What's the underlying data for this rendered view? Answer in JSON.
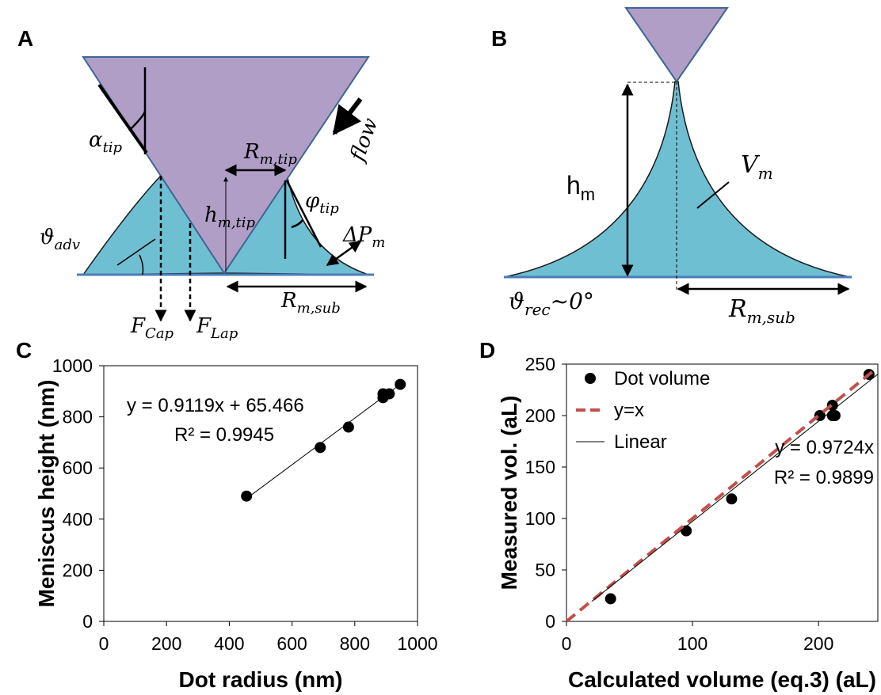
{
  "diagram_a": {
    "label": "A",
    "labels": [
      {
        "main": "α",
        "sub": "tip"
      },
      {
        "main": "flow"
      },
      {
        "main": "R",
        "sub": "m,tip"
      },
      {
        "main": "h",
        "sub": "m,tip"
      },
      {
        "main": "φ",
        "sub": "tip"
      },
      {
        "main": "ϑ",
        "sub": "adv"
      },
      {
        "main": "ΔP",
        "sub": "m"
      },
      {
        "main": "R",
        "sub": "m,sub"
      },
      {
        "main": "F",
        "sub": "Cap"
      },
      {
        "main": "F",
        "sub": "Lap"
      }
    ]
  },
  "diagram_b": {
    "label": "B",
    "labels": [
      {
        "main": "h",
        "sub": "m"
      },
      {
        "main": "V",
        "sub": "m"
      },
      {
        "main": "ϑ",
        "sub": "rec",
        "tail": "~0°"
      },
      {
        "main": "R",
        "sub": "m,sub"
      }
    ]
  },
  "chart_data": [
    {
      "type": "scatter",
      "panel_label": "C",
      "xlabel": "Dot radius (nm)",
      "ylabel": "Meniscus height (nm)",
      "xlim": [
        0,
        1000
      ],
      "xticks": [
        0,
        200,
        400,
        600,
        800,
        1000
      ],
      "ylim": [
        0,
        1000
      ],
      "yticks": [
        0,
        200,
        400,
        600,
        800,
        1000
      ],
      "annotations": [
        "y = 0.9119x + 65.466",
        "R² = 0.9945"
      ],
      "series": [
        {
          "mode": "markers",
          "color": "#000000",
          "x": [
            455,
            690,
            780,
            890,
            890,
            910,
            945
          ],
          "values": [
            490,
            680,
            760,
            875,
            890,
            890,
            927
          ]
        },
        {
          "mode": "line",
          "color": "#000000",
          "x": [
            455,
            945
          ],
          "values": [
            480.4,
            927.2
          ]
        }
      ]
    },
    {
      "type": "scatter",
      "panel_label": "D",
      "xlabel": "Calculated volume (eq.3) (aL)",
      "ylabel": "Measured vol. (aL)",
      "xlim": [
        0,
        247
      ],
      "xticks": [
        0,
        100,
        200
      ],
      "ylim": [
        0,
        250
      ],
      "yticks": [
        0,
        50,
        100,
        150,
        200,
        250
      ],
      "legend": "upper left",
      "annotations": [
        "y = 0.9724x",
        "R² = 0.9899"
      ],
      "series": [
        {
          "name": "Dot volume",
          "mode": "markers",
          "color": "#000000",
          "x": [
            35,
            95,
            131,
            201,
            211,
            211,
            213,
            240
          ],
          "values": [
            22,
            88,
            119,
            200,
            210,
            200,
            200,
            240
          ]
        },
        {
          "name": "y=x",
          "mode": "line",
          "dash": true,
          "color": "#c0504d",
          "x": [
            0,
            245
          ],
          "values": [
            0,
            245
          ]
        },
        {
          "name": "Linear",
          "mode": "line",
          "color": "#000000",
          "x": [
            20,
            247
          ],
          "values": [
            19.4,
            240.2
          ]
        }
      ]
    }
  ]
}
